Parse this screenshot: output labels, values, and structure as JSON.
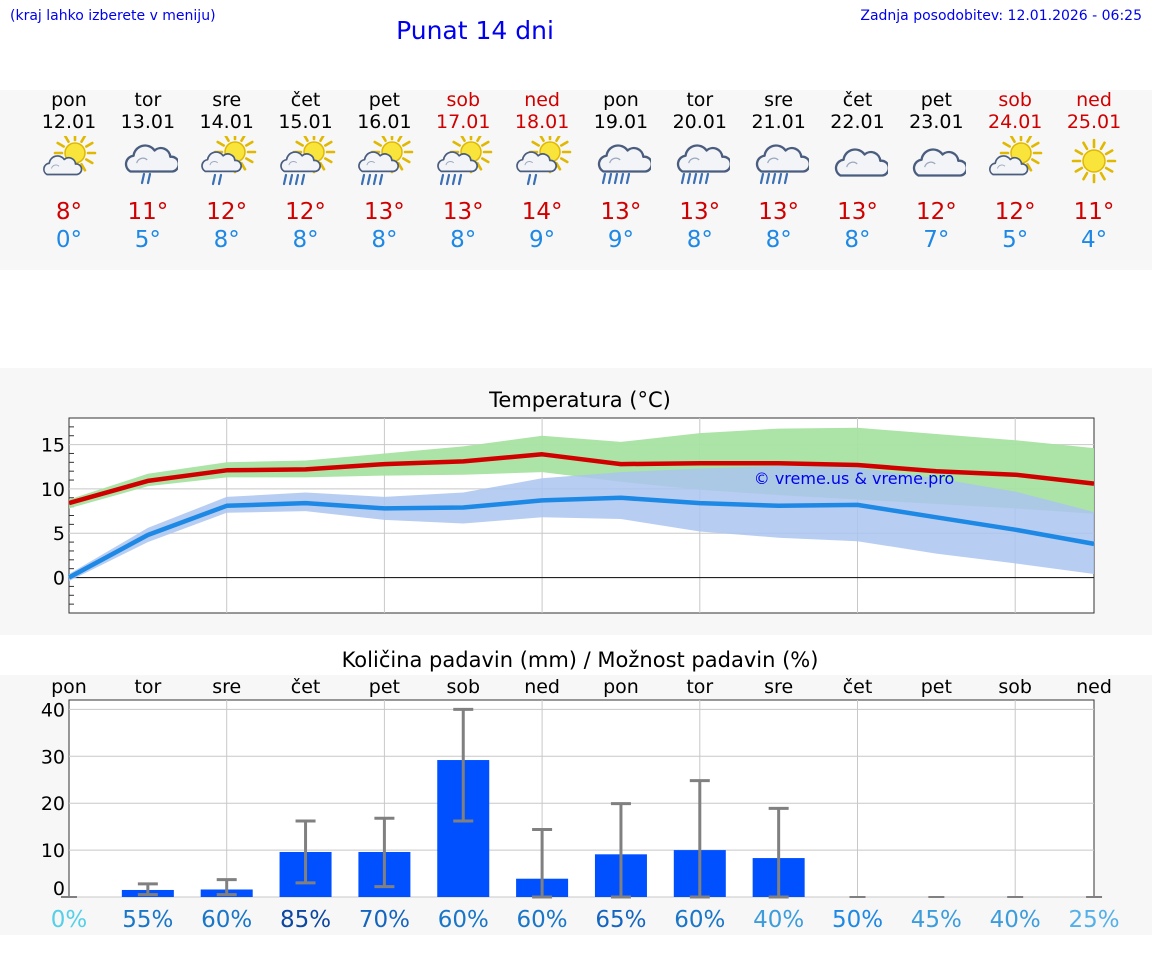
{
  "header": {
    "left_note": "(kraj lahko izberete v meniju)",
    "title": "Punat 14 dni",
    "updated": "Zadnja posodobitev: 12.01.2026 - 06:25"
  },
  "days": [
    {
      "name": "pon",
      "date": "12.01",
      "weekend": false,
      "icon": "partly-sunny-icon",
      "tmax": "8°",
      "tmin": "0°"
    },
    {
      "name": "tor",
      "date": "13.01",
      "weekend": false,
      "icon": "cloud-light-rain-icon",
      "tmax": "11°",
      "tmin": "5°"
    },
    {
      "name": "sre",
      "date": "14.01",
      "weekend": false,
      "icon": "sun-cloud-light-rain-icon",
      "tmax": "12°",
      "tmin": "8°"
    },
    {
      "name": "čet",
      "date": "15.01",
      "weekend": false,
      "icon": "sun-cloud-rain-icon",
      "tmax": "12°",
      "tmin": "8°"
    },
    {
      "name": "pet",
      "date": "16.01",
      "weekend": false,
      "icon": "sun-cloud-rain-icon",
      "tmax": "13°",
      "tmin": "8°"
    },
    {
      "name": "sob",
      "date": "17.01",
      "weekend": true,
      "icon": "sun-cloud-rain-icon",
      "tmax": "13°",
      "tmin": "8°"
    },
    {
      "name": "ned",
      "date": "18.01",
      "weekend": true,
      "icon": "sun-cloud-light-rain-icon",
      "tmax": "14°",
      "tmin": "9°"
    },
    {
      "name": "pon",
      "date": "19.01",
      "weekend": false,
      "icon": "cloud-rain-icon",
      "tmax": "13°",
      "tmin": "9°"
    },
    {
      "name": "tor",
      "date": "20.01",
      "weekend": false,
      "icon": "cloud-rain-icon",
      "tmax": "13°",
      "tmin": "8°"
    },
    {
      "name": "sre",
      "date": "21.01",
      "weekend": false,
      "icon": "cloud-rain-icon",
      "tmax": "13°",
      "tmin": "8°"
    },
    {
      "name": "čet",
      "date": "22.01",
      "weekend": false,
      "icon": "cloudy-icon",
      "tmax": "13°",
      "tmin": "8°"
    },
    {
      "name": "pet",
      "date": "23.01",
      "weekend": false,
      "icon": "cloudy-icon",
      "tmax": "12°",
      "tmin": "7°"
    },
    {
      "name": "sob",
      "date": "24.01",
      "weekend": true,
      "icon": "partly-sunny-icon",
      "tmax": "12°",
      "tmin": "5°"
    },
    {
      "name": "ned",
      "date": "25.01",
      "weekend": true,
      "icon": "sunny-icon",
      "tmax": "11°",
      "tmin": "4°"
    }
  ],
  "colors": {
    "max": "#d00000",
    "min": "#1e88e5",
    "max_band": "#a6e3a1",
    "min_band": "#aac4f0",
    "bar": "#0050ff",
    "link": "#0000ee"
  },
  "chart_data": [
    {
      "type": "line",
      "title": "Temperatura (°C)",
      "watermark": "© vreme.us & vreme.pro",
      "x": [
        1,
        2,
        3,
        4,
        5,
        6,
        7,
        8,
        9,
        10,
        11,
        12,
        13,
        14
      ],
      "ylim": [
        -4,
        18
      ],
      "yticks": [
        0,
        5,
        10,
        15
      ],
      "series": [
        {
          "name": "max",
          "values": [
            8.4,
            10.9,
            12.1,
            12.2,
            12.8,
            13.1,
            13.9,
            12.8,
            12.9,
            12.9,
            12.7,
            12.0,
            11.6,
            10.6
          ],
          "band_low": [
            7.8,
            10.3,
            11.3,
            11.3,
            11.5,
            11.6,
            11.9,
            10.8,
            9.9,
            9.3,
            8.8,
            8.3,
            7.8,
            7.2
          ],
          "band_high": [
            8.8,
            11.7,
            13.0,
            13.2,
            14.0,
            14.8,
            16.0,
            15.3,
            16.3,
            16.8,
            16.9,
            16.2,
            15.5,
            14.6
          ]
        },
        {
          "name": "min",
          "values": [
            0.0,
            4.8,
            8.1,
            8.4,
            7.8,
            7.9,
            8.7,
            9.0,
            8.4,
            8.1,
            8.2,
            6.8,
            5.4,
            3.8
          ],
          "band_low": [
            -0.4,
            4.0,
            7.3,
            7.5,
            6.5,
            6.1,
            6.8,
            6.6,
            5.2,
            4.5,
            4.1,
            2.7,
            1.6,
            0.4
          ],
          "band_high": [
            0.4,
            5.6,
            9.1,
            9.6,
            9.1,
            9.6,
            11.2,
            11.9,
            12.3,
            12.6,
            12.4,
            11.2,
            9.7,
            7.4
          ]
        }
      ]
    },
    {
      "type": "bar",
      "title": "Količina padavin (mm) / Možnost padavin (%)",
      "categories": [
        "pon",
        "tor",
        "sre",
        "čet",
        "pet",
        "sob",
        "ned",
        "pon",
        "tor",
        "sre",
        "čet",
        "pet",
        "sob",
        "ned"
      ],
      "values": [
        0,
        1.5,
        1.6,
        9.6,
        9.6,
        29.2,
        3.9,
        9.1,
        10.0,
        8.3,
        0,
        0,
        0,
        0
      ],
      "err_low": [
        0,
        0.5,
        0.5,
        3.0,
        2.2,
        16.2,
        0,
        0,
        0,
        0,
        0,
        0,
        0,
        0
      ],
      "err_high": [
        0,
        2.8,
        3.7,
        16.2,
        16.8,
        40.0,
        14.4,
        19.9,
        24.8,
        18.9,
        0,
        0,
        0,
        0
      ],
      "ylim": [
        0,
        42
      ],
      "yticks": [
        0,
        10,
        20,
        30,
        40
      ],
      "probability": [
        "0%",
        "55%",
        "60%",
        "85%",
        "70%",
        "60%",
        "60%",
        "65%",
        "60%",
        "40%",
        "50%",
        "45%",
        "40%",
        "25%"
      ],
      "probability_colors": [
        "#55d0e8",
        "#1976c8",
        "#1976c8",
        "#0d47a1",
        "#1565c0",
        "#1976c8",
        "#1976c8",
        "#1565c0",
        "#1976c8",
        "#3d9ddc",
        "#1e88e5",
        "#3d9ddc",
        "#3d9ddc",
        "#55b0e8"
      ]
    }
  ]
}
